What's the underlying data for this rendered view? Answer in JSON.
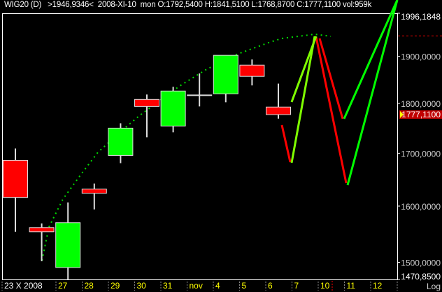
{
  "header": {
    "symbol": "WIG20 (D)",
    "cursor_price": ">1946,9346<",
    "date": "2008-XI-10",
    "weekday": "mon",
    "ohlc": "O:1792,5400 H:1841,5100 L:1768,8700 C:1777,1100 vol:959k"
  },
  "colors": {
    "background": "#000000",
    "up": "#00ff00",
    "down": "#ff0000",
    "frame": "#ffffff",
    "date_labels": "#ffff00",
    "projection_lime": "#7fff00",
    "trend_dots": "#00dd00"
  },
  "chart_data": {
    "type": "candlestick",
    "scale": "log",
    "ylim": [
      1470.85,
      1996.1848
    ],
    "y_ticks": [
      "1996,1848",
      "1900,0000",
      "1800,0000",
      "1700,0000",
      "1600,0000",
      "1500,0000",
      "1470,8500"
    ],
    "y_tick_values": [
      1996.1848,
      1900,
      1800,
      1700,
      1600,
      1500,
      1470.85
    ],
    "last_price_label": "1777,1100",
    "last_price": 1777.11,
    "scale_mode_label": "Log",
    "x_labels": [
      "23 X 2008",
      "27",
      "28",
      "29",
      "30",
      "31",
      "nov",
      "4",
      "5",
      "6",
      "7",
      "10",
      "11",
      "12"
    ],
    "candles": [
      {
        "o": 1686.2,
        "h": 1709.4,
        "l": 1553.5,
        "c": 1615.9
      },
      {
        "o": 1561.0,
        "h": 1568.5,
        "l": 1501.9,
        "c": 1553.5
      },
      {
        "o": 1491.1,
        "h": 1606.8,
        "l": 1470.0,
        "c": 1569.8
      },
      {
        "o": 1631.5,
        "h": 1642.0,
        "l": 1593.9,
        "c": 1623.7
      },
      {
        "o": 1695.7,
        "h": 1759.5,
        "l": 1680.8,
        "c": 1749.7
      },
      {
        "o": 1808.3,
        "h": 1818.5,
        "l": 1731.5,
        "c": 1793.8
      },
      {
        "o": 1753.9,
        "h": 1834.6,
        "l": 1741.3,
        "c": 1825.8
      },
      {
        "o": 1817.0,
        "h": 1862.9,
        "l": 1793.8,
        "c": 1817.0
      },
      {
        "o": 1819.9,
        "h": 1902.2,
        "l": 1802.5,
        "c": 1902.2
      },
      {
        "o": 1880.9,
        "h": 1893.1,
        "l": 1837.6,
        "c": 1856.9
      },
      {
        "o": 1792.54,
        "h": 1841.51,
        "l": 1768.87,
        "c": 1777.11
      }
    ]
  }
}
